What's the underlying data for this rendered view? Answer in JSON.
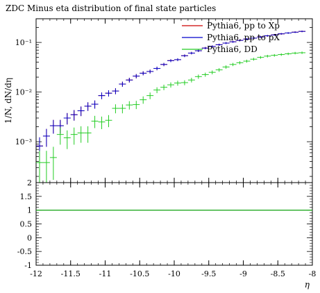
{
  "chart_data": {
    "type": "scatter",
    "title": "ZDC Minus eta distribution of final state particles",
    "xlabel": "η",
    "ylabel": "1/N, dN/dη",
    "xlim": [
      -12,
      -8
    ],
    "ylim": [
      0.00015,
      0.3
    ],
    "yscale": "log",
    "legend_position": "top-right",
    "x_ticks": [
      -12,
      -11.5,
      -11,
      -10.5,
      -10,
      -9.5,
      -9,
      -8.5,
      -8
    ],
    "x_tick_labels": [
      "-12",
      "-11.5",
      "-11",
      "-10.5",
      "-10",
      "-9.5",
      "-9",
      "-8.5",
      "-8"
    ],
    "y_ticks": [
      0.001,
      0.01,
      0.1
    ],
    "y_tick_labels": [
      "10⁻³",
      "10⁻²",
      "10⁻¹"
    ],
    "series": [
      {
        "name": "Pythia6, pp to Xp",
        "color": "#cc0000",
        "x": [
          -11.95,
          -11.85,
          -11.75,
          -11.65,
          -11.55,
          -11.45,
          -11.35,
          -11.25,
          -11.15,
          -11.05,
          -10.95,
          -10.85,
          -10.75,
          -10.65,
          -10.55,
          -10.45,
          -10.35,
          -10.25,
          -10.15,
          -10.05,
          -9.95,
          -9.85,
          -9.75,
          -9.65,
          -9.55,
          -9.45,
          -9.35,
          -9.25,
          -9.15,
          -9.05,
          -8.95,
          -8.85,
          -8.75,
          -8.65,
          -8.55,
          -8.45,
          -8.35,
          -8.25,
          -8.15
        ],
        "y": [
          0.00082,
          0.0013,
          0.0021,
          0.0021,
          0.003,
          0.0035,
          0.0042,
          0.0052,
          0.0057,
          0.0085,
          0.0095,
          0.0105,
          0.0145,
          0.0175,
          0.021,
          0.024,
          0.026,
          0.03,
          0.036,
          0.043,
          0.045,
          0.054,
          0.061,
          0.068,
          0.077,
          0.083,
          0.09,
          0.097,
          0.103,
          0.11,
          0.117,
          0.122,
          0.129,
          0.136,
          0.142,
          0.149,
          0.155,
          0.161,
          0.167
        ]
      },
      {
        "name": "Pythia6, pp to pX",
        "color": "#0000cc",
        "x": [
          -11.95,
          -11.85,
          -11.75,
          -11.65,
          -11.55,
          -11.45,
          -11.35,
          -11.25,
          -11.15,
          -11.05,
          -10.95,
          -10.85,
          -10.75,
          -10.65,
          -10.55,
          -10.45,
          -10.35,
          -10.25,
          -10.15,
          -10.05,
          -9.95,
          -9.85,
          -9.75,
          -9.65,
          -9.55,
          -9.45,
          -9.35,
          -9.25,
          -9.15,
          -9.05,
          -8.95,
          -8.85,
          -8.75,
          -8.65,
          -8.55,
          -8.45,
          -8.35,
          -8.25,
          -8.15
        ],
        "y": [
          0.00082,
          0.0013,
          0.0021,
          0.0021,
          0.003,
          0.0035,
          0.0042,
          0.0052,
          0.0057,
          0.0085,
          0.0095,
          0.0105,
          0.0145,
          0.0175,
          0.021,
          0.024,
          0.026,
          0.03,
          0.036,
          0.043,
          0.045,
          0.054,
          0.061,
          0.068,
          0.077,
          0.083,
          0.09,
          0.097,
          0.103,
          0.11,
          0.117,
          0.122,
          0.129,
          0.136,
          0.142,
          0.149,
          0.155,
          0.161,
          0.167
        ]
      },
      {
        "name": "Pythia6, DD",
        "color": "#22cc22",
        "x": [
          -11.95,
          -11.85,
          -11.75,
          -11.65,
          -11.55,
          -11.45,
          -11.35,
          -11.25,
          -11.15,
          -11.05,
          -10.95,
          -10.85,
          -10.75,
          -10.65,
          -10.55,
          -10.45,
          -10.35,
          -10.25,
          -10.15,
          -10.05,
          -9.95,
          -9.85,
          -9.75,
          -9.65,
          -9.55,
          -9.45,
          -9.35,
          -9.25,
          -9.15,
          -9.05,
          -8.95,
          -8.85,
          -8.75,
          -8.65,
          -8.55,
          -8.45,
          -8.35,
          -8.25,
          -8.15
        ],
        "y": [
          0.00038,
          0.00038,
          0.00048,
          0.0014,
          0.0012,
          0.0014,
          0.0015,
          0.0015,
          0.0026,
          0.0025,
          0.0027,
          0.0047,
          0.0047,
          0.0055,
          0.0056,
          0.007,
          0.0085,
          0.011,
          0.0125,
          0.014,
          0.0152,
          0.0155,
          0.0175,
          0.0205,
          0.0225,
          0.025,
          0.028,
          0.032,
          0.036,
          0.039,
          0.042,
          0.046,
          0.05,
          0.053,
          0.055,
          0.057,
          0.059,
          0.061,
          0.062
        ]
      }
    ],
    "ratio": {
      "ylim": [
        -1,
        2
      ],
      "y_ticks": [
        -1,
        -0.5,
        0,
        0.5,
        1,
        1.5,
        2
      ],
      "y_tick_labels": [
        "-1",
        "-0.5",
        "0",
        "0.5",
        "1",
        "1.5",
        "2"
      ],
      "line_value": 1,
      "line_color": "#22aa22"
    }
  }
}
